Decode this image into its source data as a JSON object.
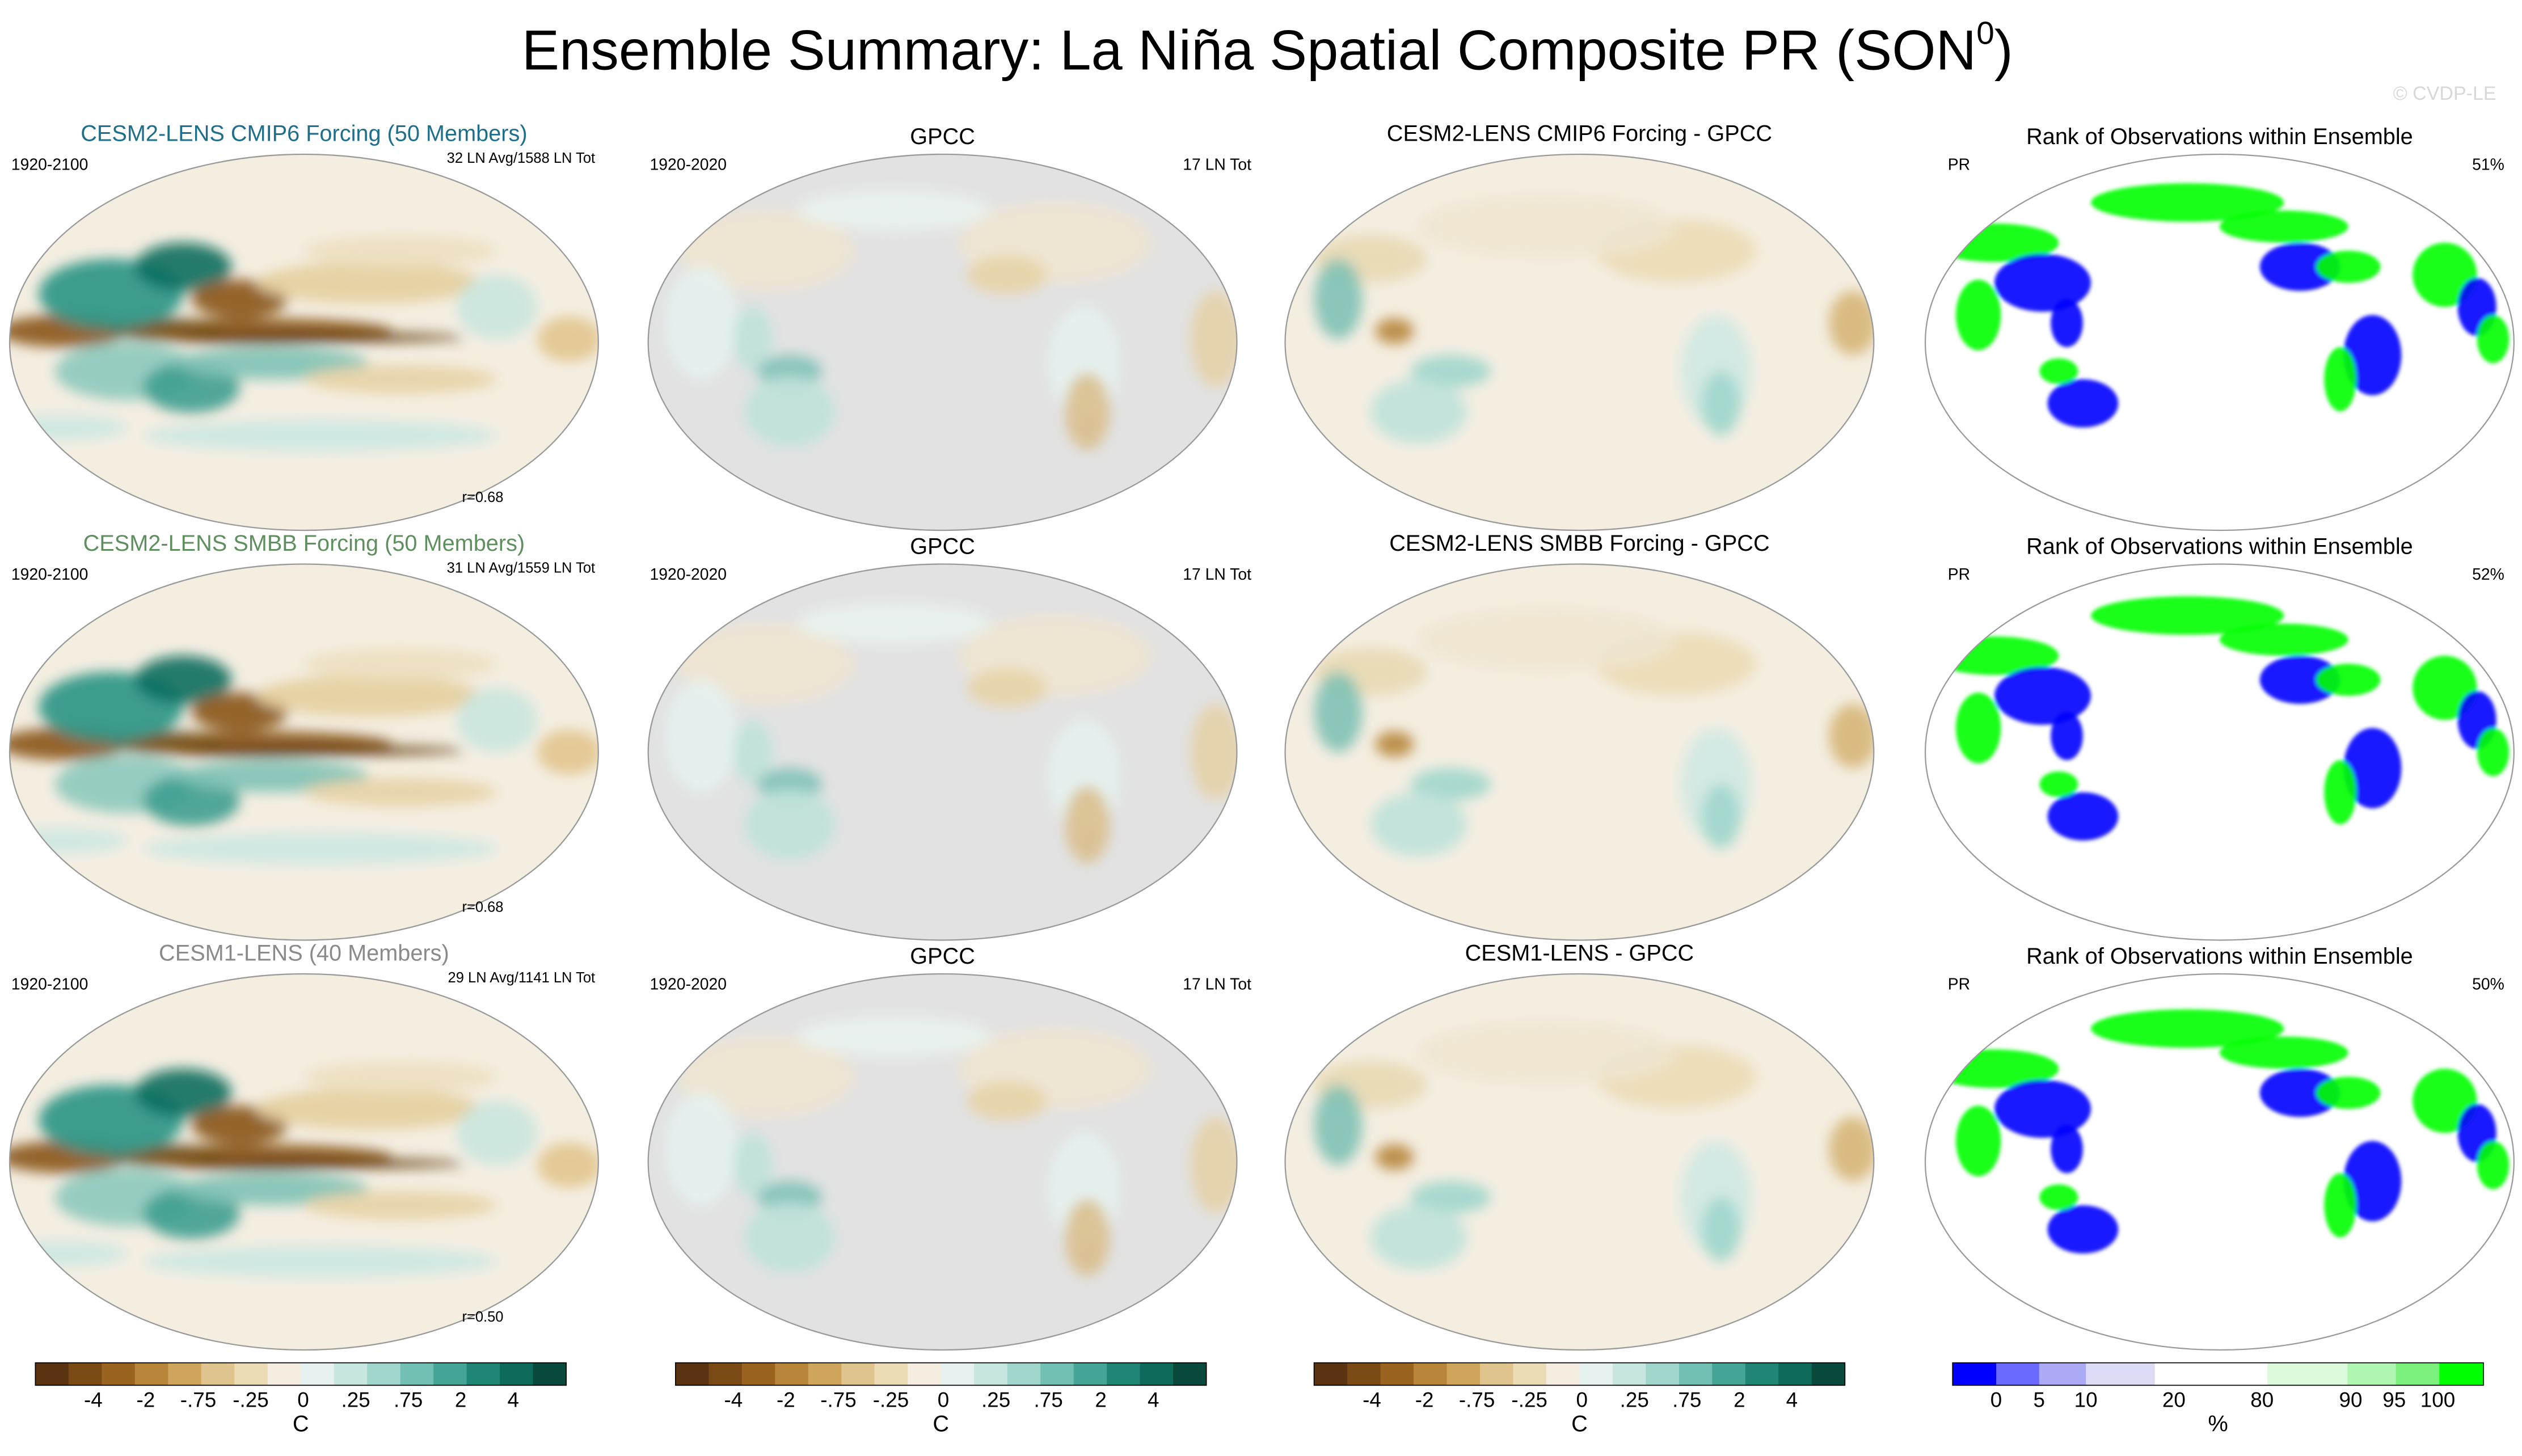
{
  "title": {
    "text": "Ensemble Summary: La Niña Spatial Composite PR (SON",
    "superscript": "0",
    "close": ")"
  },
  "watermark": "© CVDP-LE",
  "rows": [
    {
      "panels": [
        {
          "title": "CESM2-LENS CMIP6 Forcing (50 Members)",
          "left": "1920-2100",
          "right": "32 LN Avg/1588 LN Tot",
          "bottom": "r=0.68"
        },
        {
          "title": "GPCC",
          "left": "1920-2020",
          "right": "17 LN Tot"
        },
        {
          "title": "CESM2-LENS CMIP6 Forcing - GPCC"
        },
        {
          "title": "Rank of Observations within Ensemble",
          "left": "PR",
          "right": "51%"
        }
      ]
    },
    {
      "panels": [
        {
          "title": "CESM2-LENS SMBB Forcing (50 Members)",
          "left": "1920-2100",
          "right": "31 LN Avg/1559 LN Tot",
          "bottom": "r=0.68"
        },
        {
          "title": "GPCC",
          "left": "1920-2020",
          "right": "17 LN Tot"
        },
        {
          "title": "CESM2-LENS SMBB Forcing - GPCC"
        },
        {
          "title": "Rank of Observations within Ensemble",
          "left": "PR",
          "right": "52%"
        }
      ]
    },
    {
      "panels": [
        {
          "title": "CESM1-LENS (40 Members)",
          "left": "1920-2100",
          "right": "29 LN Avg/1141 LN Tot",
          "bottom": "r=0.50"
        },
        {
          "title": "GPCC",
          "left": "1920-2020",
          "right": "17 LN Tot"
        },
        {
          "title": "CESM1-LENS - GPCC"
        },
        {
          "title": "Rank of Observations within Ensemble",
          "left": "PR",
          "right": "50%"
        }
      ]
    }
  ],
  "colorbars": [
    {
      "labels": [
        "-4",
        "-2",
        "-.75",
        "-.25",
        "0",
        ".25",
        ".75",
        "2",
        "4"
      ],
      "unit": "C"
    },
    {
      "labels": [
        "-4",
        "-2",
        "-.75",
        "-.25",
        "0",
        ".25",
        ".75",
        "2",
        "4"
      ],
      "unit": "C"
    },
    {
      "labels": [
        "-4",
        "-2",
        "-.75",
        "-.25",
        "0",
        ".25",
        ".75",
        "2",
        "4"
      ],
      "unit": "C"
    },
    {
      "labels": [
        "0",
        "5",
        "10",
        "20",
        "80",
        "90",
        "95",
        "100"
      ],
      "unit": "%"
    }
  ]
}
